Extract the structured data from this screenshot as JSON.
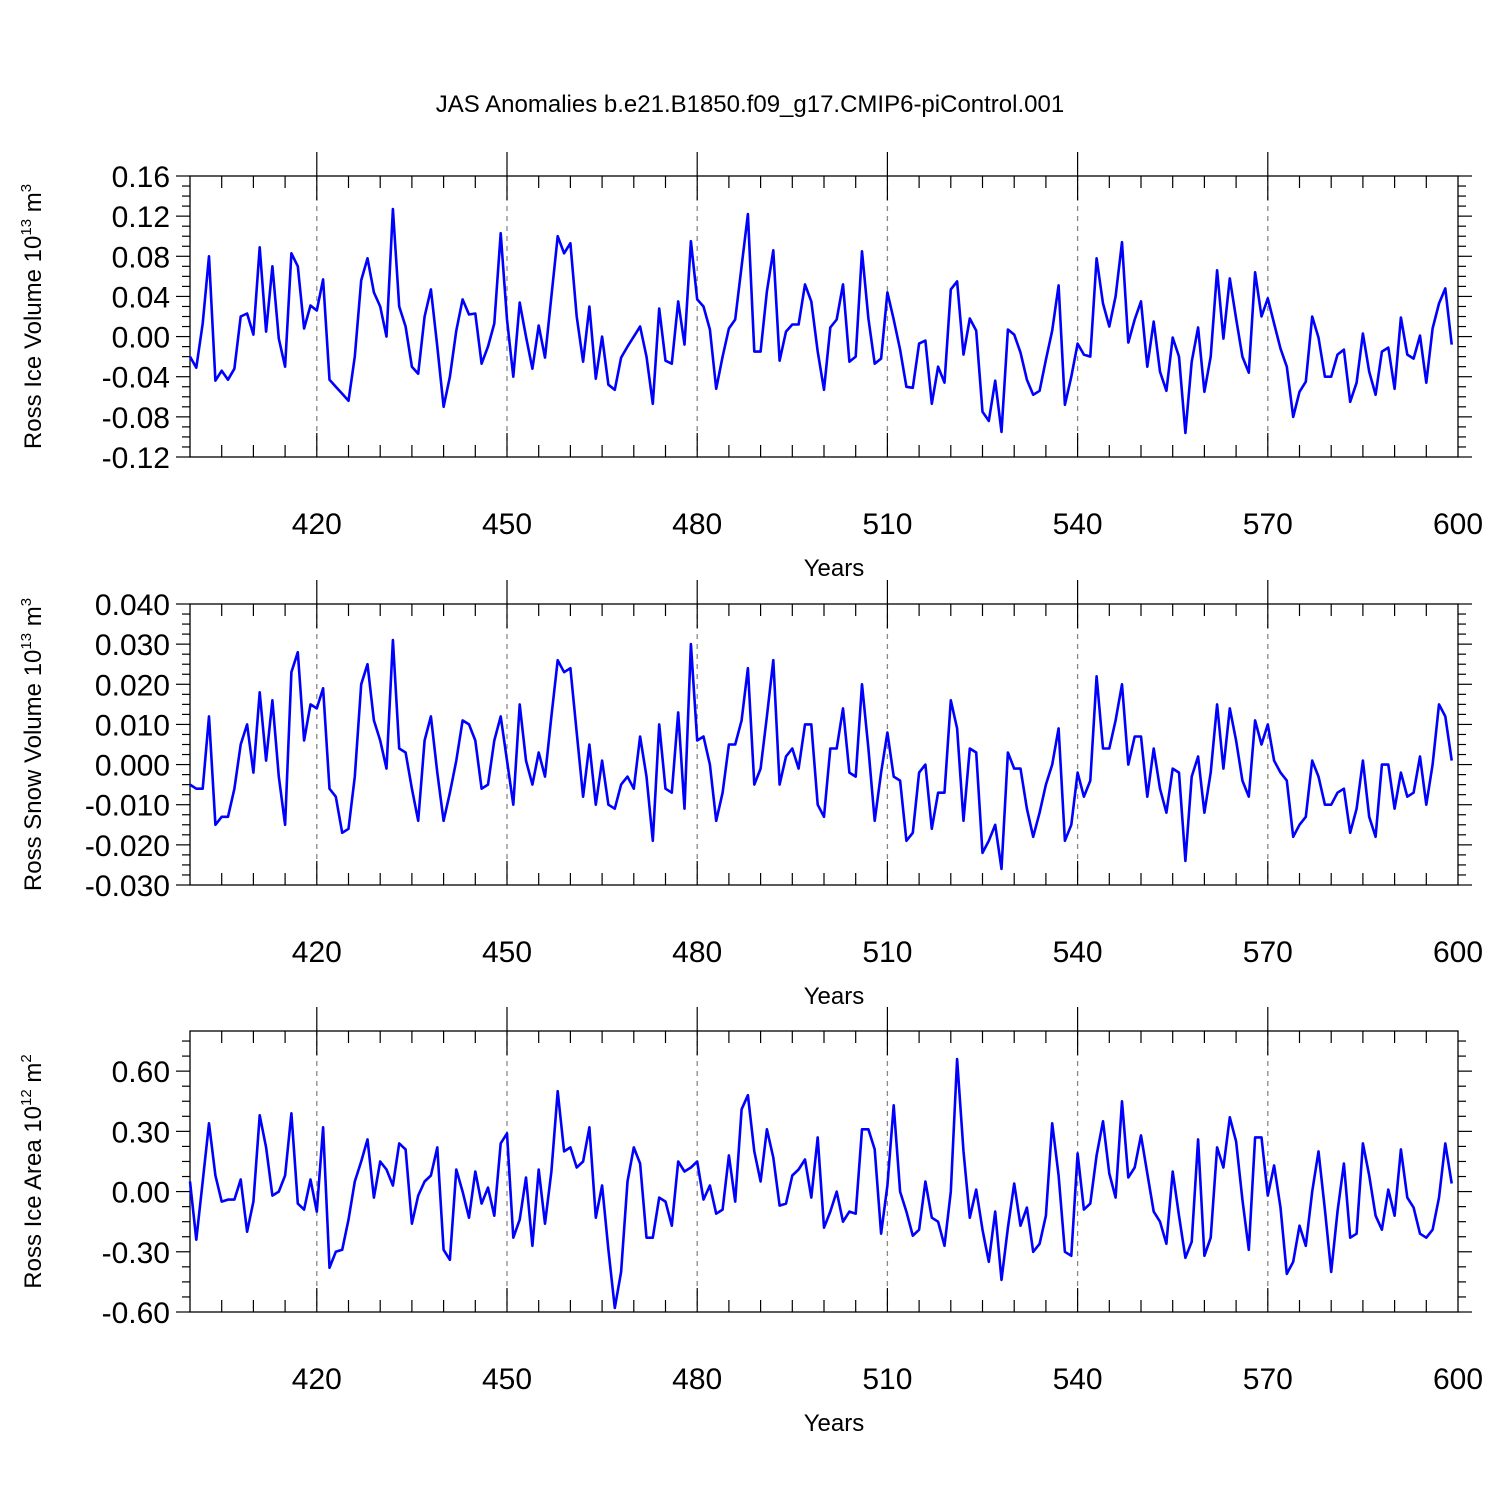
{
  "title": "JAS Anomalies b.e21.B1850.f09_g17.CMIP6-piControl.001",
  "colors": {
    "series": "#0000ff",
    "grid": "#888888"
  },
  "chart_data": [
    {
      "type": "line",
      "title": "",
      "xlabel": "Years",
      "ylabel": "Ross Ice Volume 10",
      "ylabel_sup": "13",
      "ylabel_unit": "m",
      "ylabel_unit_sup": "3",
      "xlim": [
        400,
        600
      ],
      "ylim": [
        -0.12,
        0.16
      ],
      "yticks": [
        "0.16",
        "0.12",
        "0.08",
        "0.04",
        "0.00",
        "-0.04",
        "-0.08",
        "-0.12"
      ],
      "ytick_values": [
        0.16,
        0.12,
        0.08,
        0.04,
        0.0,
        -0.04,
        -0.08,
        -0.12
      ],
      "xticks": [
        "420",
        "450",
        "480",
        "510",
        "540",
        "570",
        "600"
      ],
      "xtick_values": [
        420,
        450,
        480,
        510,
        540,
        570,
        600
      ],
      "grid": "vertical dashed at major x ticks",
      "x_start": 400,
      "x_step": 1,
      "values": [
        -0.02,
        -0.031,
        0.013,
        0.08,
        -0.044,
        -0.034,
        -0.043,
        -0.032,
        0.02,
        0.023,
        0.002,
        0.089,
        0.005,
        0.07,
        -0.002,
        -0.03,
        0.083,
        0.07,
        0.008,
        0.031,
        0.026,
        0.057,
        -0.043,
        -0.05,
        -0.057,
        -0.064,
        -0.02,
        0.056,
        0.078,
        0.044,
        0.03,
        0.0,
        0.127,
        0.03,
        0.01,
        -0.03,
        -0.037,
        0.02,
        0.047,
        -0.01,
        -0.07,
        -0.04,
        0.006,
        0.037,
        0.022,
        0.023,
        -0.027,
        -0.01,
        0.013,
        0.103,
        0.017,
        -0.04,
        0.034,
        0.0,
        -0.032,
        0.011,
        -0.021,
        0.04,
        0.1,
        0.083,
        0.093,
        0.02,
        -0.025,
        0.03,
        -0.042,
        0.0,
        -0.048,
        -0.053,
        -0.021,
        -0.01,
        0.0,
        0.01,
        -0.02,
        -0.067,
        0.028,
        -0.024,
        -0.027,
        0.035,
        -0.008,
        0.095,
        0.037,
        0.03,
        0.007,
        -0.052,
        -0.02,
        0.008,
        0.017,
        0.07,
        0.122,
        -0.015,
        -0.015,
        0.045,
        0.086,
        -0.024,
        0.005,
        0.012,
        0.012,
        0.052,
        0.035,
        -0.015,
        -0.053,
        0.009,
        0.017,
        0.052,
        -0.025,
        -0.02,
        0.085,
        0.018,
        -0.027,
        -0.022,
        0.044,
        0.017,
        -0.013,
        -0.05,
        -0.051,
        -0.007,
        -0.004,
        -0.067,
        -0.03,
        -0.046,
        0.047,
        0.055,
        -0.018,
        0.018,
        0.006,
        -0.075,
        -0.084,
        -0.044,
        -0.095,
        0.007,
        0.002,
        -0.016,
        -0.043,
        -0.058,
        -0.054,
        -0.023,
        0.006,
        0.051,
        -0.068,
        -0.04,
        -0.007,
        -0.018,
        -0.02,
        0.078,
        0.033,
        0.01,
        0.04,
        0.094,
        -0.006,
        0.017,
        0.035,
        -0.03,
        0.015,
        -0.035,
        -0.054,
        -0.001,
        -0.02,
        -0.096,
        -0.025,
        0.009,
        -0.055,
        -0.02,
        0.066,
        -0.002,
        0.058,
        0.018,
        -0.02,
        -0.036,
        0.064,
        0.02,
        0.038,
        0.013,
        -0.012,
        -0.03,
        -0.08,
        -0.055,
        -0.045,
        0.02,
        -0.001,
        -0.04,
        -0.04,
        -0.018,
        -0.013,
        -0.065,
        -0.046,
        0.003,
        -0.035,
        -0.058,
        -0.015,
        -0.011,
        -0.052,
        0.019,
        -0.018,
        -0.022,
        0.001,
        -0.046,
        0.008,
        0.033,
        0.048,
        -0.008
      ]
    },
    {
      "type": "line",
      "title": "",
      "xlabel": "Years",
      "ylabel": "Ross Snow Volume 10",
      "ylabel_sup": "13",
      "ylabel_unit": "m",
      "ylabel_unit_sup": "3",
      "xlim": [
        400,
        600
      ],
      "ylim": [
        -0.03,
        0.04
      ],
      "yticks": [
        "0.040",
        "0.030",
        "0.020",
        "0.010",
        "0.000",
        "-0.010",
        "-0.020",
        "-0.030"
      ],
      "ytick_values": [
        0.04,
        0.03,
        0.02,
        0.01,
        0.0,
        -0.01,
        -0.02,
        -0.03
      ],
      "xticks": [
        "420",
        "450",
        "480",
        "510",
        "540",
        "570",
        "600"
      ],
      "xtick_values": [
        420,
        450,
        480,
        510,
        540,
        570,
        600
      ],
      "grid": "vertical dashed at major x ticks",
      "x_start": 400,
      "x_step": 1,
      "values": [
        -0.005,
        -0.006,
        -0.006,
        0.012,
        -0.015,
        -0.013,
        -0.013,
        -0.006,
        0.005,
        0.01,
        -0.002,
        0.018,
        0.001,
        0.016,
        -0.003,
        -0.015,
        0.023,
        0.028,
        0.006,
        0.015,
        0.014,
        0.019,
        -0.006,
        -0.008,
        -0.017,
        -0.016,
        -0.003,
        0.02,
        0.025,
        0.011,
        0.006,
        -0.001,
        0.031,
        0.004,
        0.003,
        -0.006,
        -0.014,
        0.006,
        0.012,
        -0.002,
        -0.014,
        -0.007,
        0.001,
        0.011,
        0.01,
        0.006,
        -0.006,
        -0.005,
        0.006,
        0.012,
        0.001,
        -0.01,
        0.015,
        0.001,
        -0.005,
        0.003,
        -0.003,
        0.012,
        0.026,
        0.023,
        0.024,
        0.008,
        -0.008,
        0.005,
        -0.01,
        0.001,
        -0.01,
        -0.011,
        -0.005,
        -0.003,
        -0.006,
        0.007,
        -0.003,
        -0.019,
        0.01,
        -0.006,
        -0.007,
        0.013,
        -0.011,
        0.03,
        0.006,
        0.007,
        0.0,
        -0.014,
        -0.007,
        0.005,
        0.005,
        0.011,
        0.024,
        -0.005,
        -0.001,
        0.012,
        0.026,
        -0.005,
        0.002,
        0.004,
        -0.001,
        0.01,
        0.01,
        -0.01,
        -0.013,
        0.004,
        0.004,
        0.014,
        -0.002,
        -0.003,
        0.02,
        0.004,
        -0.014,
        -0.002,
        0.008,
        -0.003,
        -0.004,
        -0.019,
        -0.017,
        -0.002,
        0.0,
        -0.016,
        -0.007,
        -0.007,
        0.016,
        0.009,
        -0.014,
        0.004,
        0.003,
        -0.022,
        -0.019,
        -0.015,
        -0.026,
        0.003,
        -0.001,
        -0.001,
        -0.011,
        -0.018,
        -0.012,
        -0.005,
        0.0,
        0.009,
        -0.019,
        -0.015,
        -0.002,
        -0.008,
        -0.004,
        0.022,
        0.004,
        0.004,
        0.011,
        0.02,
        0.0,
        0.007,
        0.007,
        -0.008,
        0.004,
        -0.006,
        -0.012,
        -0.001,
        -0.002,
        -0.024,
        -0.003,
        0.002,
        -0.012,
        -0.002,
        0.015,
        -0.001,
        0.014,
        0.006,
        -0.004,
        -0.008,
        0.011,
        0.005,
        0.01,
        0.001,
        -0.002,
        -0.004,
        -0.018,
        -0.015,
        -0.013,
        0.001,
        -0.003,
        -0.01,
        -0.01,
        -0.007,
        -0.006,
        -0.017,
        -0.011,
        0.001,
        -0.013,
        -0.018,
        0.0,
        0.0,
        -0.011,
        -0.002,
        -0.008,
        -0.007,
        0.002,
        -0.01,
        0.0,
        0.015,
        0.012,
        0.001
      ]
    },
    {
      "type": "line",
      "title": "",
      "xlabel": "Years",
      "ylabel": "Ross Ice Area 10",
      "ylabel_sup": "12",
      "ylabel_unit": "m",
      "ylabel_unit_sup": "2",
      "xlim": [
        400,
        600
      ],
      "ylim": [
        -0.6,
        0.8
      ],
      "yticks": [
        "0.60",
        "0.30",
        "0.00",
        "-0.30",
        "-0.60"
      ],
      "ytick_values": [
        0.6,
        0.3,
        0.0,
        -0.3,
        -0.6
      ],
      "xticks": [
        "420",
        "450",
        "480",
        "510",
        "540",
        "570",
        "600"
      ],
      "xtick_values": [
        420,
        450,
        480,
        510,
        540,
        570,
        600
      ],
      "grid": "vertical dashed at major x ticks",
      "x_start": 400,
      "x_step": 1,
      "values": [
        0.05,
        -0.24,
        0.05,
        0.34,
        0.08,
        -0.05,
        -0.04,
        -0.04,
        0.06,
        -0.2,
        -0.05,
        0.38,
        0.22,
        -0.02,
        0.0,
        0.08,
        0.39,
        -0.06,
        -0.09,
        0.06,
        -0.1,
        0.32,
        -0.38,
        -0.3,
        -0.29,
        -0.14,
        0.05,
        0.15,
        0.26,
        -0.03,
        0.15,
        0.11,
        0.03,
        0.24,
        0.21,
        -0.16,
        -0.02,
        0.05,
        0.08,
        0.22,
        -0.29,
        -0.34,
        0.11,
        0.0,
        -0.13,
        0.1,
        -0.06,
        0.02,
        -0.12,
        0.24,
        0.29,
        -0.23,
        -0.14,
        0.07,
        -0.27,
        0.11,
        -0.16,
        0.1,
        0.5,
        0.2,
        0.22,
        0.12,
        0.15,
        0.32,
        -0.13,
        0.03,
        -0.29,
        -0.58,
        -0.4,
        0.05,
        0.22,
        0.14,
        -0.23,
        -0.23,
        -0.03,
        -0.05,
        -0.17,
        0.15,
        0.1,
        0.12,
        0.15,
        -0.04,
        0.03,
        -0.11,
        -0.09,
        0.18,
        -0.05,
        0.41,
        0.48,
        0.2,
        0.05,
        0.31,
        0.17,
        -0.07,
        -0.06,
        0.08,
        0.11,
        0.16,
        -0.03,
        0.27,
        -0.18,
        -0.1,
        0.0,
        -0.15,
        -0.1,
        -0.11,
        0.31,
        0.31,
        0.21,
        -0.21,
        0.03,
        0.43,
        0.0,
        -0.1,
        -0.22,
        -0.19,
        0.05,
        -0.13,
        -0.15,
        -0.27,
        0.0,
        0.66,
        0.2,
        -0.13,
        0.01,
        -0.19,
        -0.35,
        -0.1,
        -0.44,
        -0.18,
        0.04,
        -0.17,
        -0.08,
        -0.3,
        -0.26,
        -0.12,
        0.34,
        0.08,
        -0.3,
        -0.32,
        0.19,
        -0.09,
        -0.06,
        0.18,
        0.35,
        0.09,
        -0.03,
        0.45,
        0.07,
        0.12,
        0.28,
        0.09,
        -0.1,
        -0.15,
        -0.26,
        0.1,
        -0.12,
        -0.33,
        -0.25,
        0.26,
        -0.32,
        -0.23,
        0.22,
        0.12,
        0.37,
        0.25,
        -0.04,
        -0.29,
        0.27,
        0.27,
        -0.02,
        0.13,
        -0.08,
        -0.41,
        -0.35,
        -0.17,
        -0.27,
        0.0,
        0.2,
        -0.09,
        -0.4,
        -0.1,
        0.14,
        -0.23,
        -0.21,
        0.24,
        0.08,
        -0.12,
        -0.19,
        0.01,
        -0.12,
        0.21,
        -0.03,
        -0.08,
        -0.21,
        -0.23,
        -0.19,
        -0.03,
        0.24,
        0.04
      ]
    }
  ]
}
